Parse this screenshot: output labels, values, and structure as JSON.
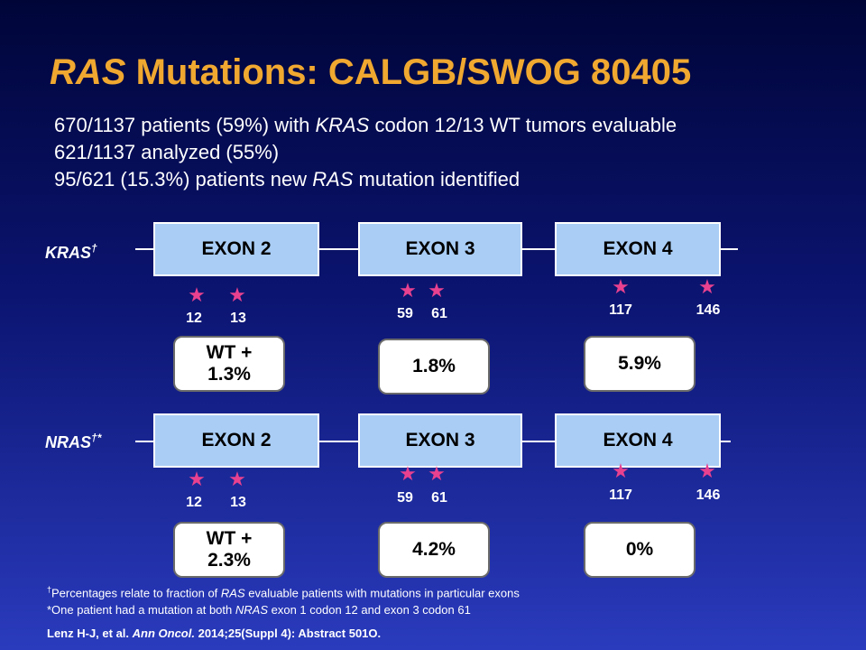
{
  "title": {
    "italic": "RAS",
    "rest": " Mutations: CALGB/SWOG 80405"
  },
  "bullets": [
    {
      "pre": "670/1137 patients (59%) with ",
      "em": "KRAS",
      "post": " codon 12/13 WT tumors evaluable"
    },
    {
      "pre": "621/1137 analyzed (55%)",
      "em": "",
      "post": ""
    },
    {
      "pre": "95/621 (15.3%) patients new ",
      "em": "RAS",
      "post": " mutation identified"
    }
  ],
  "genes": [
    {
      "label": "KRAS",
      "mark": "†",
      "exons": [
        "EXON 2",
        "EXON 3",
        "EXON 4"
      ],
      "codons": [
        [
          "12",
          "13"
        ],
        [
          "59",
          "61"
        ],
        [
          "117",
          "146"
        ]
      ],
      "percents": [
        [
          "WT +",
          "1.3%"
        ],
        [
          "1.8%"
        ],
        [
          "5.9%"
        ]
      ]
    },
    {
      "label": "NRAS",
      "mark": "†*",
      "exons": [
        "EXON 2",
        "EXON 3",
        "EXON 4"
      ],
      "codons": [
        [
          "12",
          "13"
        ],
        [
          "59",
          "61"
        ],
        [
          "117",
          "146"
        ]
      ],
      "percents": [
        [
          "WT +",
          "2.3%"
        ],
        [
          "4.2%"
        ],
        [
          "0%"
        ]
      ]
    }
  ],
  "footnotes": {
    "f1_mark": "†",
    "f1_pre": "Percentages relate to fraction of ",
    "f1_em": "RAS",
    "f1_post": " evaluable patients with mutations in particular exons",
    "f2_pre": "*One patient had a mutation at both ",
    "f2_em": "NRAS",
    "f2_post": " exon 1 codon 12 and exon 3 codon 61"
  },
  "reference": {
    "authors": "Lenz H-J, et al. ",
    "journal": "Ann Oncol.",
    "rest": " 2014;25(Suppl 4): Abstract 501O."
  },
  "colors": {
    "title": "#f0a830",
    "exon_fill": "#a9cdf5",
    "star": "#e8418f",
    "background_top": "#000538",
    "background_bottom": "#2a3bbd"
  },
  "icons": {
    "codon_marker": "star-icon"
  }
}
